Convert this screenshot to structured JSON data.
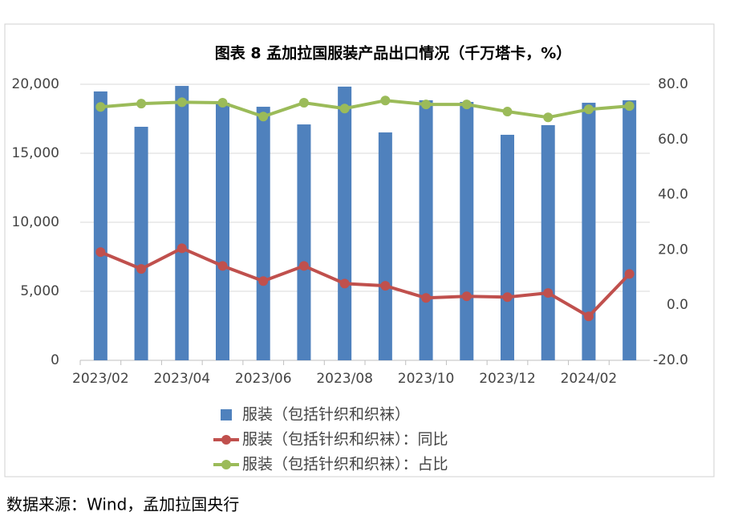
{
  "chart_data": {
    "type": "bar-line",
    "title": "图表 8 孟加拉国服装产品出口情况（千万塔卡，%）",
    "source": "数据来源：Wind，孟加拉国央行",
    "categories": [
      "2023/02",
      null,
      "2023/04",
      null,
      "2023/06",
      null,
      "2023/08",
      null,
      "2023/10",
      null,
      "2023/12",
      null,
      "2024/02",
      null
    ],
    "series": [
      {
        "name": "服装（包括针织和织袜）",
        "type": "bar",
        "axis": "y",
        "color": "#4f81bd",
        "values": [
          19480,
          16920,
          19880,
          18660,
          18370,
          17090,
          19830,
          16510,
          18840,
          18720,
          16340,
          17040,
          18660,
          18840
        ]
      },
      {
        "name": "服装（包括针织和织袜）：同比",
        "type": "line",
        "axis": "y2",
        "color": "#c0504d",
        "values": [
          19.2,
          13.1,
          20.6,
          14.2,
          8.7,
          14.2,
          7.8,
          7.0,
          2.6,
          3.2,
          2.9,
          4.4,
          -4.1,
          11.3
        ]
      },
      {
        "name": "服装（包括针织和织袜）：占比",
        "type": "line",
        "axis": "y2",
        "color": "#9bbb59",
        "values": [
          71.8,
          73.0,
          73.5,
          73.3,
          68.3,
          73.3,
          71.2,
          74.1,
          72.7,
          72.7,
          70.1,
          68.0,
          70.9,
          72.1
        ]
      }
    ],
    "ylim": [
      0,
      20000
    ],
    "yticks": [
      0,
      {
        "value": 5000,
        "label": "5,000"
      },
      {
        "value": 10000,
        "label": "10,000"
      },
      {
        "value": 15000,
        "label": "15,000"
      },
      {
        "value": 20000,
        "label": "20,000"
      }
    ],
    "y2lim": [
      -20,
      80
    ],
    "y2ticks": [
      {
        "value": -20,
        "label": "-20.0"
      },
      {
        "value": 0,
        "label": "0.0"
      },
      {
        "value": 20,
        "label": "20.0"
      },
      {
        "value": 40,
        "label": "40.0"
      },
      {
        "value": 60,
        "label": "60.0"
      },
      {
        "value": 80,
        "label": "80.0"
      }
    ],
    "grid": true,
    "legend": "bottom"
  }
}
